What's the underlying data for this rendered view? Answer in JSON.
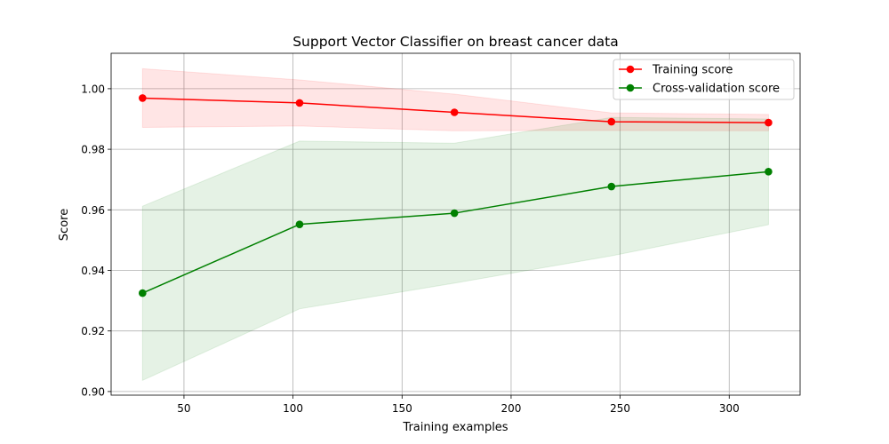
{
  "chart_data": {
    "type": "line",
    "title": "Support Vector Classifier on breast cancer data",
    "xlabel": "Training examples",
    "ylabel": "Score",
    "xlim": [
      16.6,
      332.5
    ],
    "ylim": [
      0.8988,
      1.0117
    ],
    "xticks": [
      50,
      100,
      150,
      200,
      250,
      300
    ],
    "yticks": [
      0.9,
      0.92,
      0.94,
      0.96,
      0.98,
      1.0
    ],
    "ytick_labels": [
      "0.90",
      "0.92",
      "0.94",
      "0.96",
      "0.98",
      "1.00"
    ],
    "grid": true,
    "legend_position": "top-right",
    "x": [
      31,
      103,
      174,
      246,
      318
    ],
    "series": [
      {
        "name": "Training score",
        "color": "#ff0000",
        "values": [
          0.9969,
          0.9953,
          0.9922,
          0.9891,
          0.9888
        ],
        "band_lower": [
          0.9872,
          0.9877,
          0.9861,
          0.9862,
          0.9861
        ],
        "band_upper": [
          1.0066,
          1.0029,
          0.9982,
          0.992,
          0.9915
        ]
      },
      {
        "name": "Cross-validation score",
        "color": "#008000",
        "values": [
          0.9325,
          0.9552,
          0.9589,
          0.9677,
          0.9726
        ],
        "band_lower": [
          0.9037,
          0.9273,
          0.9358,
          0.9448,
          0.9551
        ],
        "band_upper": [
          0.9612,
          0.9827,
          0.982,
          0.9905,
          0.99
        ]
      }
    ]
  }
}
